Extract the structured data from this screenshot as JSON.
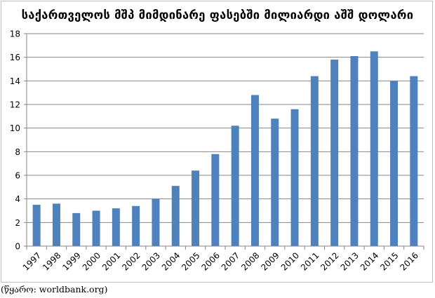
{
  "source_note": "(წყარო: worldbank.org)",
  "chart_data": {
    "type": "bar",
    "title": "საქართველოს მშპ მიმდინარე ფასებში მილიარდი აშშ დოლარი",
    "categories": [
      "1997",
      "1998",
      "1999",
      "2000",
      "2001",
      "2002",
      "2003",
      "2004",
      "2005",
      "2006",
      "2007",
      "2008",
      "2009",
      "2010",
      "2011",
      "2012",
      "2013",
      "2014",
      "2015",
      "2016"
    ],
    "series": [
      {
        "values": [
          3.5,
          3.6,
          2.8,
          3.0,
          3.2,
          3.4,
          4.0,
          5.1,
          6.4,
          7.8,
          10.2,
          12.8,
          10.8,
          11.6,
          14.4,
          15.8,
          16.1,
          16.5,
          14.0,
          14.4
        ]
      }
    ],
    "ylim": [
      0,
      18
    ],
    "yticks": [
      0,
      2,
      4,
      6,
      8,
      10,
      12,
      14,
      16,
      18
    ],
    "xlabel": "",
    "ylabel": "",
    "grid": true,
    "legend": "none",
    "colors": {
      "bar": "#4f81bd",
      "grid": "#868686",
      "axis": "#868686"
    }
  }
}
